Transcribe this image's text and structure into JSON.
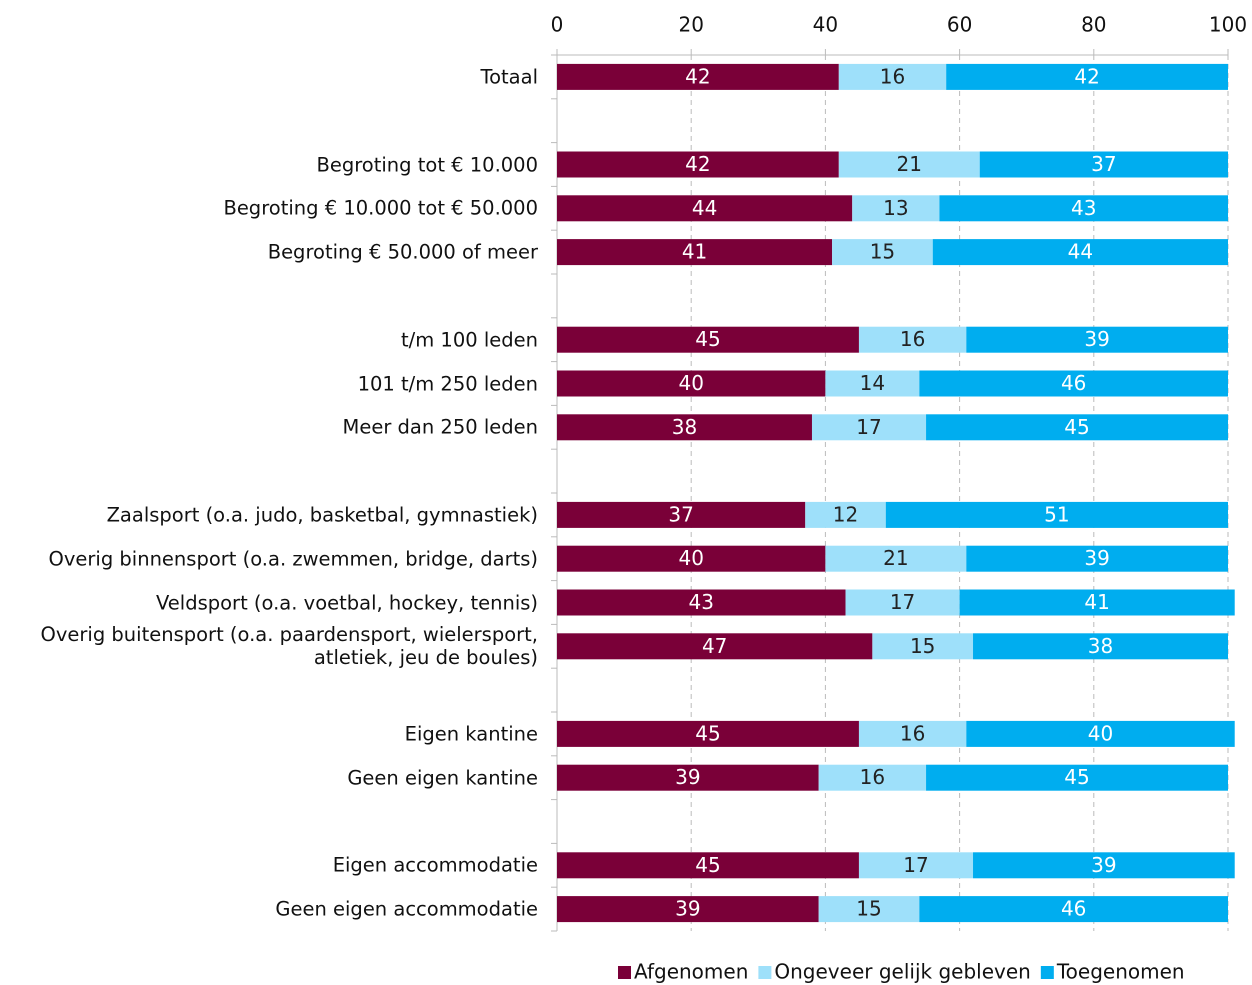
{
  "chart_data": {
    "type": "stacked-bar-horizontal",
    "categories": [
      "Totaal",
      null,
      "Begroting tot € 10.000",
      "Begroting € 10.000 tot € 50.000",
      "Begroting € 50.000 of meer",
      null,
      "t/m 100 leden",
      "101 t/m 250 leden",
      "Meer dan 250 leden",
      null,
      "Zaalsport (o.a. judo, basketbal, gymnastiek)",
      "Overig binnensport (o.a. zwemmen, bridge, darts)",
      "Veldsport (o.a. voetbal, hockey, tennis)",
      "Overig buitensport (o.a. paardensport, wielersport, atletiek, jeu de boules)",
      null,
      "Eigen kantine",
      "Geen eigen kantine",
      null,
      "Eigen accommodatie",
      "Geen eigen accommodatie"
    ],
    "series": [
      {
        "name": "Afgenomen",
        "color": "#7a0038",
        "values": [
          42,
          null,
          42,
          44,
          41,
          null,
          45,
          40,
          38,
          null,
          37,
          40,
          43,
          47,
          null,
          45,
          39,
          null,
          45,
          39
        ]
      },
      {
        "name": "Ongeveer gelijk gebleven",
        "color": "#9ee0fa",
        "values": [
          16,
          null,
          21,
          13,
          15,
          null,
          16,
          14,
          17,
          null,
          12,
          21,
          17,
          15,
          null,
          16,
          16,
          null,
          17,
          15
        ]
      },
      {
        "name": "Toegenomen",
        "color": "#00adef",
        "values": [
          42,
          null,
          37,
          43,
          44,
          null,
          39,
          46,
          45,
          null,
          51,
          39,
          41,
          38,
          null,
          40,
          45,
          null,
          39,
          46
        ]
      }
    ],
    "xlim": [
      0,
      100
    ],
    "xticks": [
      0,
      20,
      40,
      60,
      80,
      100
    ],
    "grid": true,
    "legend": "bottom"
  }
}
